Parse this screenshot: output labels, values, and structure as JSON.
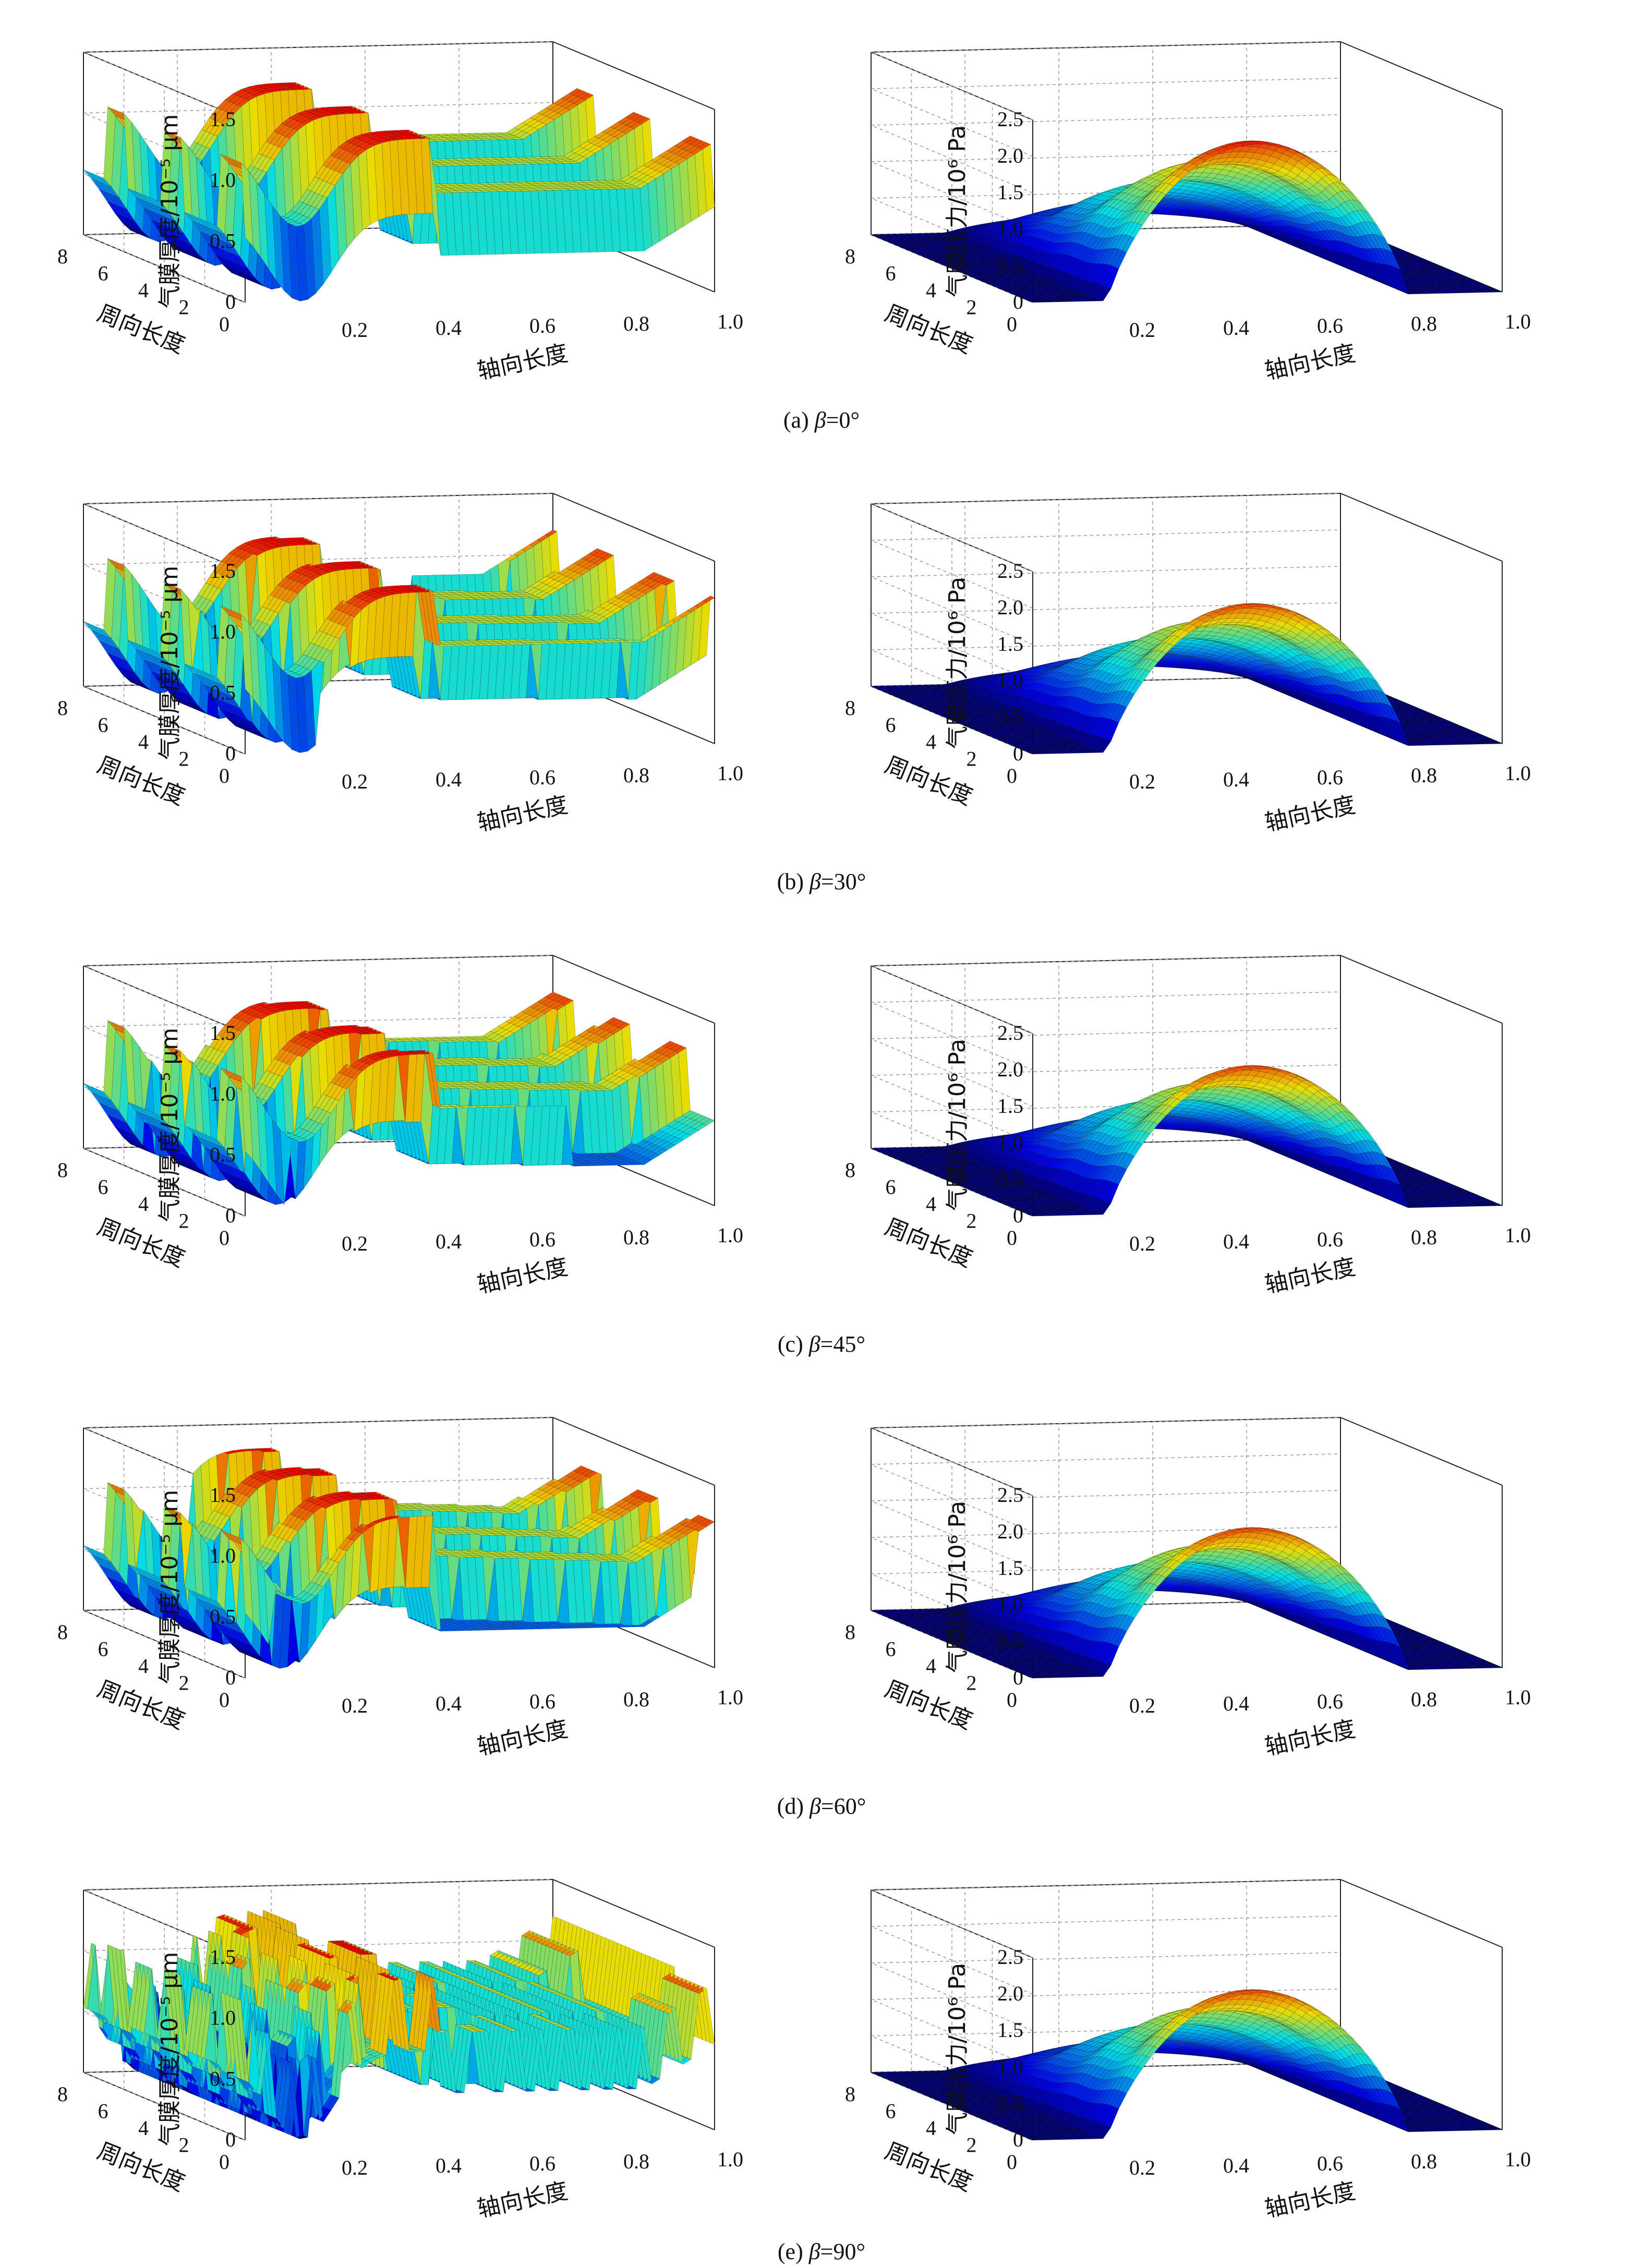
{
  "figure": {
    "captions": [
      {
        "letter": "(a)",
        "symbol": "β",
        "value": "=0°"
      },
      {
        "letter": "(b)",
        "symbol": "β",
        "value": "=30°"
      },
      {
        "letter": "(c)",
        "symbol": "β",
        "value": "=45°"
      },
      {
        "letter": "(d)",
        "symbol": "β",
        "value": "=60°"
      },
      {
        "letter": "(e)",
        "symbol": "β",
        "value": "=90°"
      }
    ]
  },
  "chart_data": [
    {
      "type": "surface",
      "panel": "a-left",
      "title": "",
      "xlabel": "轴向长度",
      "ylabel": "周向长度",
      "zlabel": "气膜厚度/10⁻⁵ μm",
      "x_ticks": [
        "0.2",
        "0.4",
        "0.6",
        "0.8",
        "1.0"
      ],
      "y_ticks": [
        "0",
        "2",
        "4",
        "6",
        "8"
      ],
      "z_ticks": [
        "0",
        "0.5",
        "1.0",
        "1.5"
      ],
      "xlim": [
        0,
        1.0
      ],
      "ylim": [
        0,
        8
      ],
      "zlim": [
        0,
        1.5
      ],
      "groove_angle_deg": 0,
      "description_values": {
        "groove_peak": 1.3,
        "land_level": 0.7,
        "trough_min": 0.0
      }
    },
    {
      "type": "surface",
      "panel": "a-right",
      "title": "",
      "xlabel": "轴向长度",
      "ylabel": "周向长度",
      "zlabel": "气膜压力/10⁶ Pa",
      "x_ticks": [
        "0.2",
        "0.4",
        "0.6",
        "0.8",
        "1.0"
      ],
      "y_ticks": [
        "0",
        "2",
        "4",
        "6",
        "8"
      ],
      "z_ticks": [
        "0",
        "0.5",
        "1.0",
        "1.5",
        "2.0",
        "2.5"
      ],
      "xlim": [
        0,
        1.0
      ],
      "ylim": [
        0,
        8
      ],
      "zlim": [
        0,
        2.5
      ],
      "groove_angle_deg": 0,
      "description_values": {
        "peak_pressure": 2.1
      }
    },
    {
      "type": "surface",
      "panel": "b-left",
      "title": "",
      "xlabel": "轴向长度",
      "ylabel": "周向长度",
      "zlabel": "气膜厚度/10⁻⁵ μm",
      "x_ticks": [
        "0.2",
        "0.4",
        "0.6",
        "0.8",
        "1.0"
      ],
      "y_ticks": [
        "0",
        "2",
        "4",
        "6",
        "8"
      ],
      "z_ticks": [
        "0",
        "0.5",
        "1.0",
        "1.5"
      ],
      "xlim": [
        0,
        1.0
      ],
      "ylim": [
        0,
        8
      ],
      "zlim": [
        0,
        1.5
      ],
      "groove_angle_deg": 30,
      "description_values": {
        "groove_peak": 1.3,
        "land_level": 0.7,
        "trough_min": 0.0
      }
    },
    {
      "type": "surface",
      "panel": "b-right",
      "title": "",
      "xlabel": "轴向长度",
      "ylabel": "周向长度",
      "zlabel": "气膜压力/10⁶ Pa",
      "x_ticks": [
        "0.2",
        "0.4",
        "0.6",
        "0.8",
        "1.0"
      ],
      "y_ticks": [
        "0",
        "2",
        "4",
        "6",
        "8"
      ],
      "z_ticks": [
        "0",
        "0.5",
        "1.0",
        "1.5",
        "2.0",
        "2.5"
      ],
      "xlim": [
        0,
        1.0
      ],
      "ylim": [
        0,
        8
      ],
      "zlim": [
        0,
        2.5
      ],
      "groove_angle_deg": 30,
      "description_values": {
        "peak_pressure": 1.95
      }
    },
    {
      "type": "surface",
      "panel": "c-left",
      "title": "",
      "xlabel": "轴向长度",
      "ylabel": "周向长度",
      "zlabel": "气膜厚度/10⁻⁵ μm",
      "x_ticks": [
        "0.2",
        "0.4",
        "0.6",
        "0.8",
        "1.0"
      ],
      "y_ticks": [
        "0",
        "2",
        "4",
        "6",
        "8"
      ],
      "z_ticks": [
        "0",
        "0.5",
        "1.0",
        "1.5"
      ],
      "xlim": [
        0,
        1.0
      ],
      "ylim": [
        0,
        8
      ],
      "zlim": [
        0,
        1.5
      ],
      "groove_angle_deg": 45,
      "description_values": {
        "groove_peak": 1.3,
        "land_level": 0.7,
        "trough_min": 0.0
      }
    },
    {
      "type": "surface",
      "panel": "c-right",
      "title": "",
      "xlabel": "轴向长度",
      "ylabel": "周向长度",
      "zlabel": "气膜压力/10⁶ Pa",
      "x_ticks": [
        "0.2",
        "0.4",
        "0.6",
        "0.8",
        "1.0"
      ],
      "y_ticks": [
        "0",
        "2",
        "4",
        "6",
        "8"
      ],
      "z_ticks": [
        "0",
        "0.5",
        "1.0",
        "1.5",
        "2.0",
        "2.5"
      ],
      "xlim": [
        0,
        1.0
      ],
      "ylim": [
        0,
        8
      ],
      "zlim": [
        0,
        2.5
      ],
      "groove_angle_deg": 45,
      "description_values": {
        "peak_pressure": 1.95
      }
    },
    {
      "type": "surface",
      "panel": "d-left",
      "title": "",
      "xlabel": "轴向长度",
      "ylabel": "周向长度",
      "zlabel": "气膜厚度/10⁻⁵ μm",
      "x_ticks": [
        "0.2",
        "0.4",
        "0.6",
        "0.8",
        "1.0"
      ],
      "y_ticks": [
        "0",
        "2",
        "4",
        "6",
        "8"
      ],
      "z_ticks": [
        "0",
        "0.5",
        "1.0",
        "1.5"
      ],
      "xlim": [
        0,
        1.0
      ],
      "ylim": [
        0,
        8
      ],
      "zlim": [
        0,
        1.5
      ],
      "groove_angle_deg": 60,
      "description_values": {
        "groove_peak": 1.3,
        "land_level": 0.7,
        "trough_min": 0.0
      }
    },
    {
      "type": "surface",
      "panel": "d-right",
      "title": "",
      "xlabel": "轴向长度",
      "ylabel": "周向长度",
      "zlabel": "气膜压力/10⁶ Pa",
      "x_ticks": [
        "0.2",
        "0.4",
        "0.6",
        "0.8",
        "1.0"
      ],
      "y_ticks": [
        "0",
        "2",
        "4",
        "6",
        "8"
      ],
      "z_ticks": [
        "0",
        "0.5",
        "1.0",
        "1.5",
        "2.0",
        "2.5"
      ],
      "xlim": [
        0,
        1.0
      ],
      "ylim": [
        0,
        8
      ],
      "zlim": [
        0,
        2.5
      ],
      "groove_angle_deg": 60,
      "description_values": {
        "peak_pressure": 1.95
      }
    },
    {
      "type": "surface",
      "panel": "e-left",
      "title": "",
      "xlabel": "轴向长度",
      "ylabel": "周向长度",
      "zlabel": "气膜厚度/10⁻⁵ μm",
      "x_ticks": [
        "0.2",
        "0.4",
        "0.6",
        "0.8",
        "1.0"
      ],
      "y_ticks": [
        "0",
        "2",
        "4",
        "6",
        "8"
      ],
      "z_ticks": [
        "0",
        "0.5",
        "1.0",
        "1.5"
      ],
      "xlim": [
        0,
        1.0
      ],
      "ylim": [
        0,
        8
      ],
      "zlim": [
        0,
        1.5
      ],
      "groove_angle_deg": 90,
      "description_values": {
        "groove_peak": 1.3,
        "land_level": 0.7,
        "trough_min": 0.0
      }
    },
    {
      "type": "surface",
      "panel": "e-right",
      "title": "",
      "xlabel": "轴向长度",
      "ylabel": "周向长度",
      "zlabel": "气膜压力/10⁶ Pa",
      "x_ticks": [
        "0.2",
        "0.4",
        "0.6",
        "0.8",
        "1.0"
      ],
      "y_ticks": [
        "0",
        "2",
        "4",
        "6",
        "8"
      ],
      "z_ticks": [
        "0",
        "0.5",
        "1.0",
        "1.5",
        "2.0",
        "2.5"
      ],
      "xlim": [
        0,
        1.0
      ],
      "ylim": [
        0,
        8
      ],
      "zlim": [
        0,
        2.5
      ],
      "groove_angle_deg": 90,
      "description_values": {
        "peak_pressure": 1.95
      }
    }
  ]
}
